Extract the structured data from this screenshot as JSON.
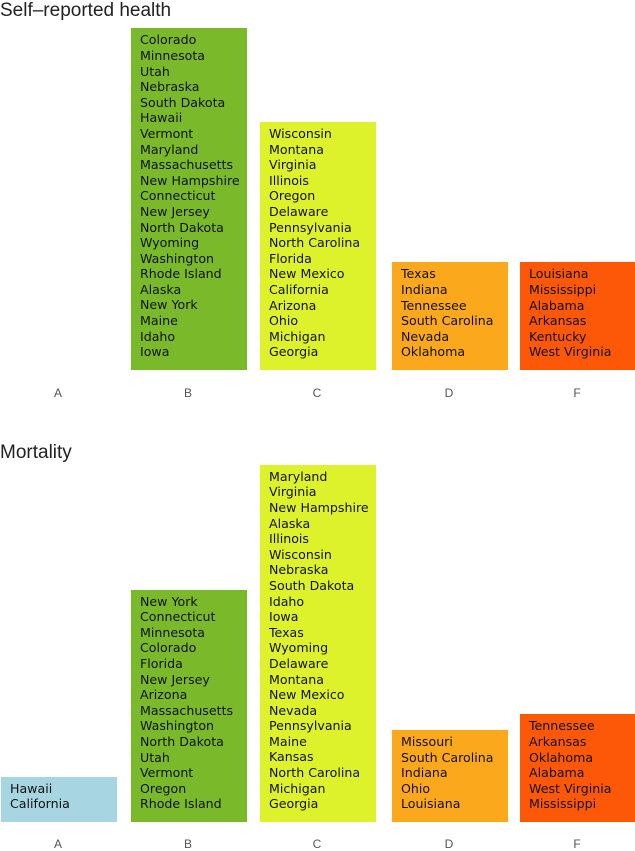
{
  "colors": {
    "A": "#a8d5e2",
    "B": "#7ab929",
    "C": "#def22b",
    "D": "#fba81c",
    "F": "#fc5808"
  },
  "chart_data": [
    {
      "type": "bar",
      "title": "Self–reported health",
      "categories": [
        "A",
        "B",
        "C",
        "D",
        "F"
      ],
      "values": [
        0,
        21,
        15,
        6,
        6
      ],
      "groups": {
        "A": [],
        "B": [
          "Colorado",
          "Minnesota",
          "Utah",
          "Nebraska",
          "South Dakota",
          "Hawaii",
          "Vermont",
          "Maryland",
          "Massachusetts",
          "New Hampshire",
          "Connecticut",
          "New Jersey",
          "North Dakota",
          "Wyoming",
          "Washington",
          "Rhode Island",
          "Alaska",
          "New York",
          "Maine",
          "Idaho",
          "Iowa"
        ],
        "C": [
          "Wisconsin",
          "Montana",
          "Virginia",
          "Illinois",
          "Oregon",
          "Delaware",
          "Pennsylvania",
          "North Carolina",
          "Florida",
          "New Mexico",
          "California",
          "Arizona",
          "Ohio",
          "Michigan",
          "Georgia"
        ],
        "D": [
          "Texas",
          "Indiana",
          "Tennessee",
          "South Carolina",
          "Nevada",
          "Oklahoma"
        ],
        "F": [
          "Louisiana",
          "Mississippi",
          "Alabama",
          "Arkansas",
          "Kentucky",
          "West Virginia"
        ]
      }
    },
    {
      "type": "bar",
      "title": "Mortality",
      "categories": [
        "A",
        "B",
        "C",
        "D",
        "F"
      ],
      "values": [
        2,
        14,
        22,
        5,
        6
      ],
      "groups": {
        "A": [
          "Hawaii",
          "California"
        ],
        "B": [
          "New York",
          "Connecticut",
          "Minnesota",
          "Colorado",
          "Florida",
          "New Jersey",
          "Arizona",
          "Massachusetts",
          "Washington",
          "North Dakota",
          "Utah",
          "Vermont",
          "Oregon",
          "Rhode Island"
        ],
        "C": [
          "Maryland",
          "Virginia",
          "New Hampshire",
          "Alaska",
          "Illinois",
          "Wisconsin",
          "Nebraska",
          "South Dakota",
          "Idaho",
          "Iowa",
          "Texas",
          "Wyoming",
          "Delaware",
          "Montana",
          "New Mexico",
          "Nevada",
          "Pennsylvania",
          "Maine",
          "Kansas",
          "North Carolina",
          "Michigan",
          "Georgia"
        ],
        "D": [
          "Missouri",
          "South Carolina",
          "Indiana",
          "Ohio",
          "Louisiana"
        ],
        "F": [
          "Tennessee",
          "Arkansas",
          "Oklahoma",
          "Alabama",
          "West Virginia",
          "Mississippi"
        ]
      }
    }
  ]
}
